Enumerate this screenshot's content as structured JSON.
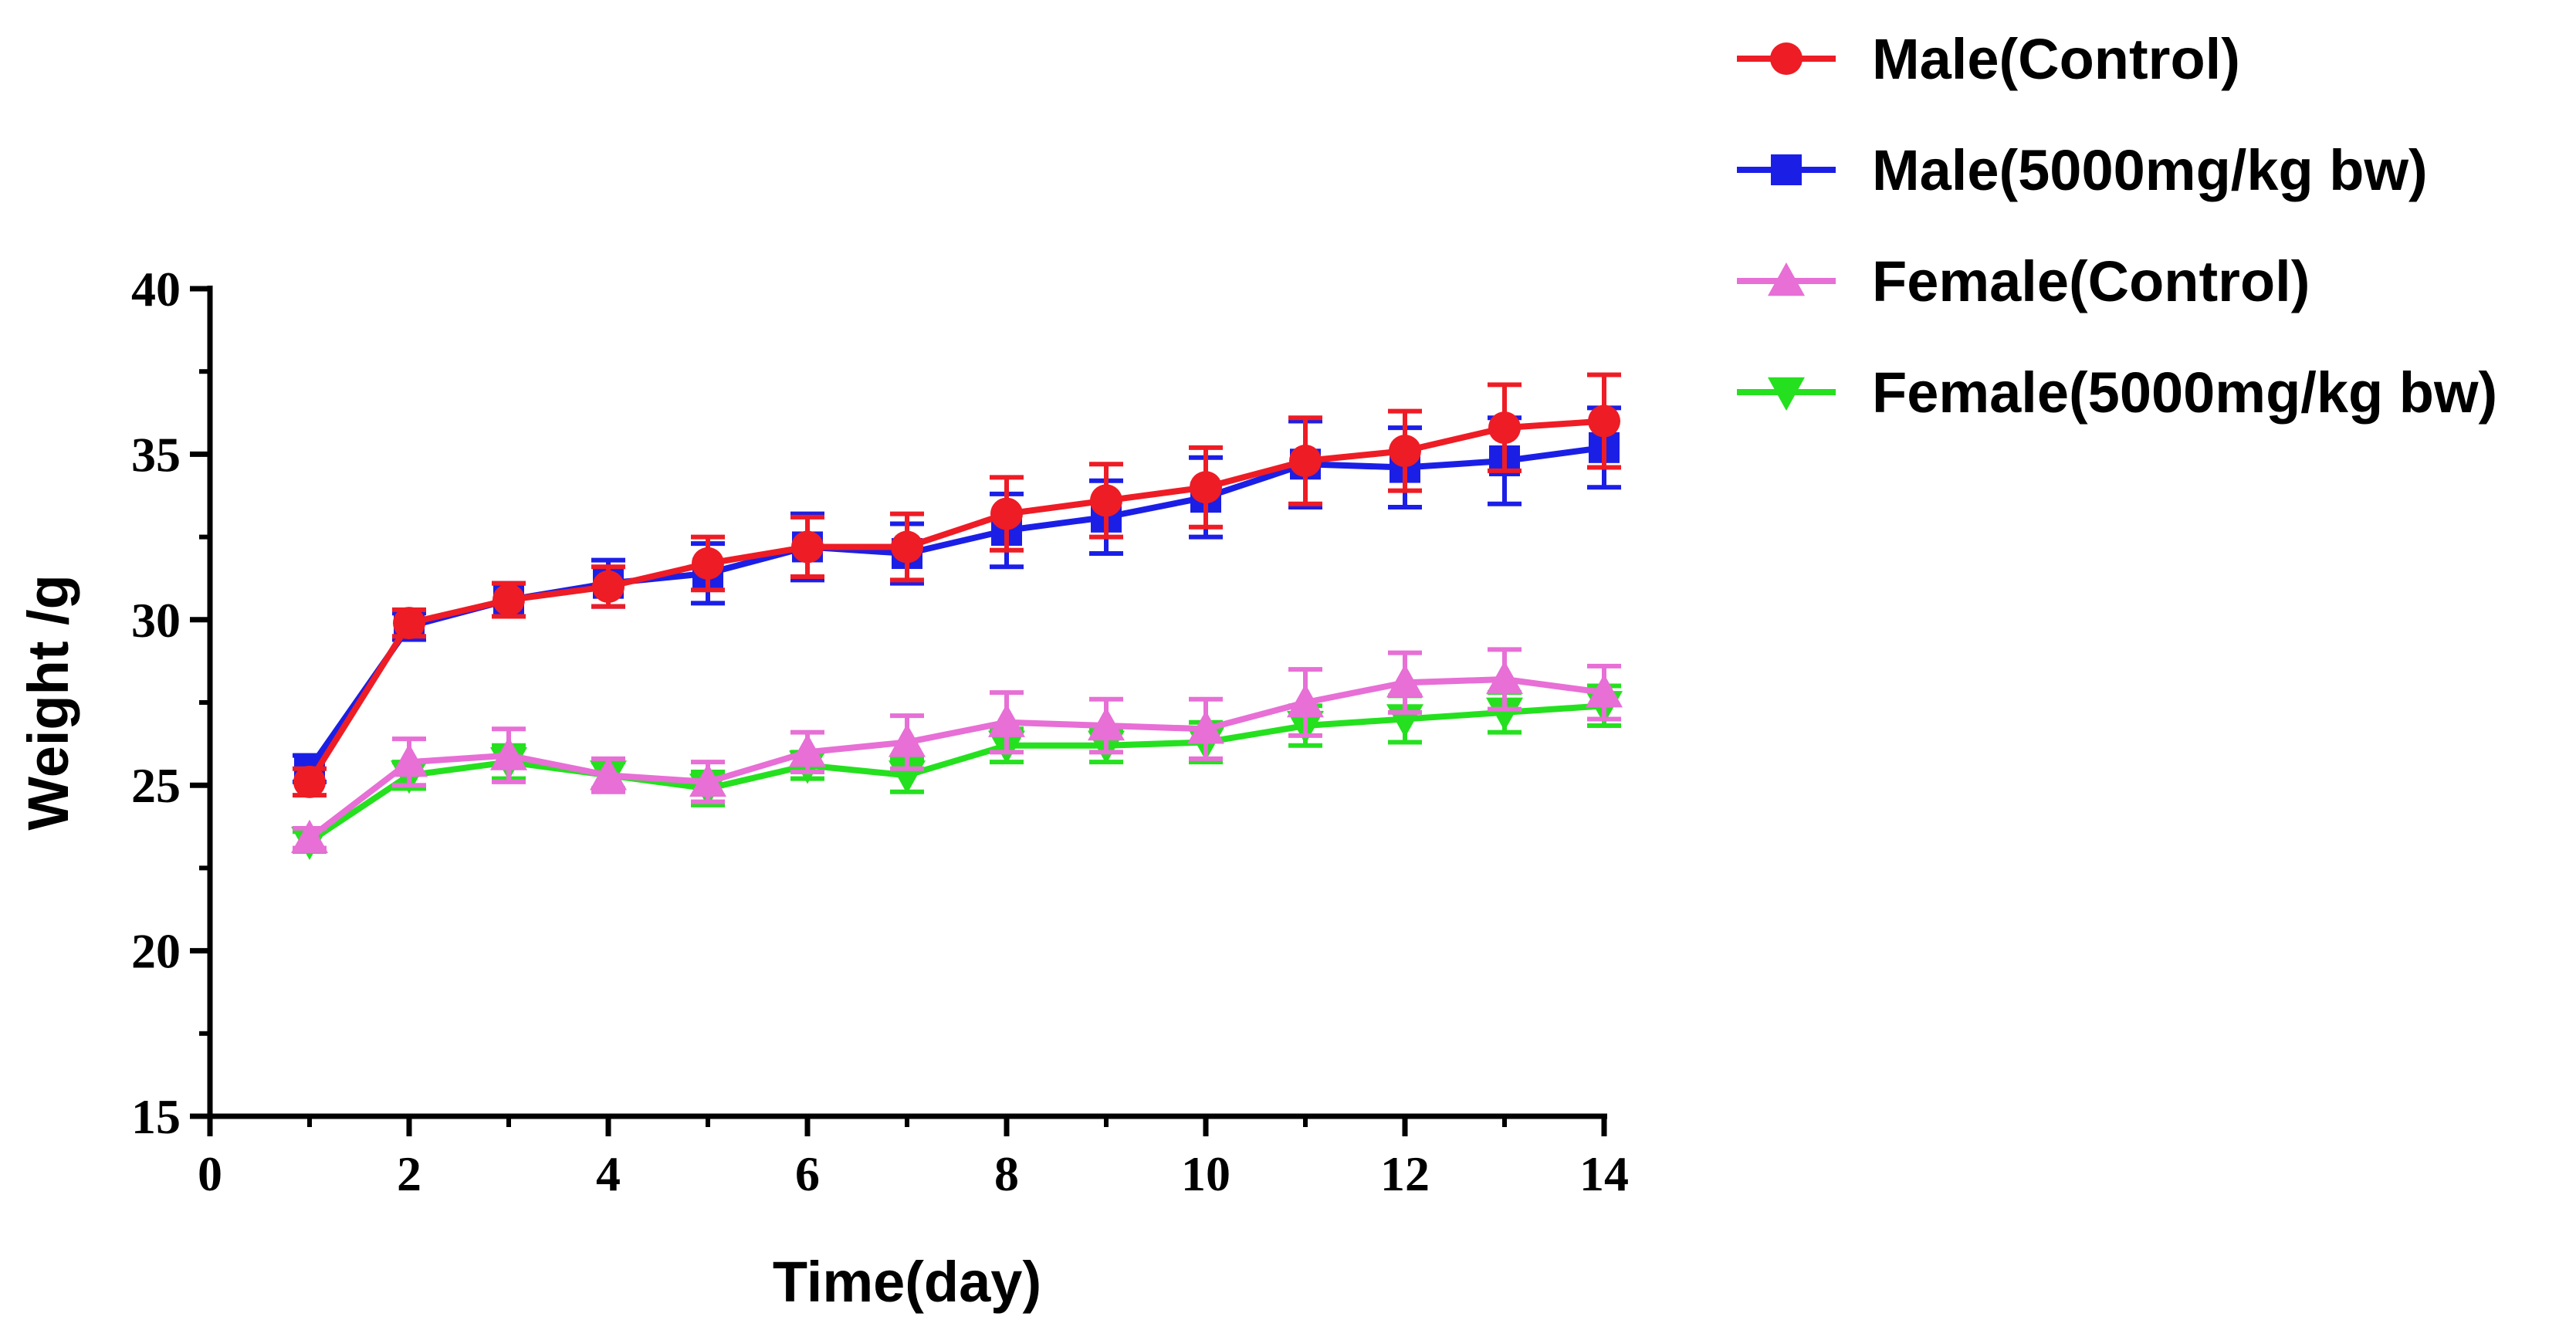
{
  "chart_data": {
    "type": "line",
    "title": "",
    "xlabel": "Time(day)",
    "ylabel": "Weight /g",
    "xlim": [
      0,
      14
    ],
    "ylim": [
      15,
      40
    ],
    "xticks": [
      0,
      2,
      4,
      6,
      8,
      10,
      12,
      14
    ],
    "yticks": [
      15,
      20,
      25,
      30,
      35,
      40
    ],
    "grid": false,
    "legend_position": "top-right",
    "x": [
      1,
      2,
      3,
      4,
      5,
      6,
      7,
      8,
      9,
      10,
      11,
      12,
      13,
      14
    ],
    "series": [
      {
        "name": "Male(Control)",
        "color": "#ee1c25",
        "marker": "circle",
        "values": [
          25.1,
          29.9,
          30.6,
          31.0,
          31.7,
          32.2,
          32.2,
          33.2,
          33.6,
          34.0,
          34.8,
          35.1,
          35.8,
          36.0
        ],
        "errors": [
          0.4,
          0.4,
          0.5,
          0.6,
          0.8,
          0.9,
          1.0,
          1.1,
          1.1,
          1.2,
          1.3,
          1.2,
          1.3,
          1.4
        ]
      },
      {
        "name": "Male(5000mg/kg bw)",
        "color": "#1b1fe6",
        "marker": "square",
        "values": [
          25.5,
          29.8,
          30.6,
          31.1,
          31.4,
          32.2,
          32.0,
          32.7,
          33.1,
          33.7,
          34.7,
          34.6,
          34.8,
          35.2
        ],
        "errors": [
          0.4,
          0.4,
          0.5,
          0.7,
          0.9,
          1.0,
          0.9,
          1.1,
          1.1,
          1.2,
          1.3,
          1.2,
          1.3,
          1.2
        ]
      },
      {
        "name": "Female(Control)",
        "color": "#e76fd6",
        "marker": "triangle-up",
        "values": [
          23.4,
          25.7,
          25.9,
          25.3,
          25.1,
          26.0,
          26.3,
          26.9,
          26.8,
          26.7,
          27.5,
          28.1,
          28.2,
          27.8
        ],
        "errors": [
          0.3,
          0.7,
          0.8,
          0.5,
          0.6,
          0.6,
          0.8,
          0.9,
          0.8,
          0.9,
          1.0,
          0.9,
          0.9,
          0.8
        ]
      },
      {
        "name": "Female(5000mg/kg bw)",
        "color": "#25e01f",
        "marker": "triangle-down",
        "values": [
          23.3,
          25.3,
          25.7,
          25.3,
          24.9,
          25.6,
          25.3,
          26.2,
          26.2,
          26.3,
          26.8,
          27.0,
          27.2,
          27.4
        ],
        "errors": [
          0.3,
          0.4,
          0.5,
          0.4,
          0.5,
          0.4,
          0.5,
          0.5,
          0.5,
          0.6,
          0.6,
          0.7,
          0.6,
          0.6
        ]
      }
    ]
  }
}
